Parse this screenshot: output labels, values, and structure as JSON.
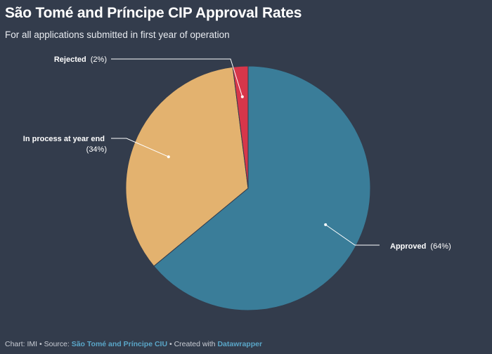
{
  "header": {
    "title": "São Tomé and Príncipe CIP Approval Rates",
    "subtitle": "For all applications submitted in first year of operation"
  },
  "chart_data": {
    "type": "pie",
    "title": "São Tomé and Príncipe CIP Approval Rates",
    "subtitle": "For all applications submitted in first year of operation",
    "slices": [
      {
        "label": "Approved",
        "value_label": "(64%)",
        "value": 64,
        "color": "#3a7d99"
      },
      {
        "label": "In process at year end",
        "value_label": "(34%)",
        "value": 34,
        "color": "#e3b26f"
      },
      {
        "label": "Rejected",
        "value_label": "(2%)",
        "value": 2,
        "color": "#d7364a"
      }
    ]
  },
  "footer": {
    "prefix": "Chart: IMI • Source: ",
    "source": "São Tomé and Príncipe CIU",
    "middle": " • Created with ",
    "tool": "Datawrapper"
  }
}
